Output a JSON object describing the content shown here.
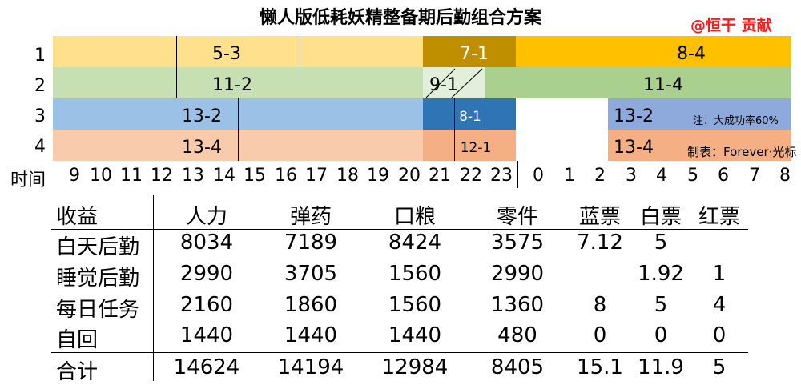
{
  "title": "懒人版低耗妖精整备期后勤组合方案",
  "credit": "@恒干 贡献",
  "row_labels": [
    "1",
    "2",
    "3",
    "4"
  ],
  "gantt": {
    "r1": {
      "a": "5-3",
      "b": "7-1",
      "c": "8-4"
    },
    "r2": {
      "a": "11-2",
      "b": "9-1",
      "c": "11-4"
    },
    "r3": {
      "a": "13-2",
      "b": "8-1",
      "c": "13-2"
    },
    "r4": {
      "a": "13-4",
      "b": "12-1",
      "c": "13-4"
    }
  },
  "notes": {
    "n1": "注：大成功率60%",
    "n2": "制表：Forever·光标"
  },
  "time_label": "时间",
  "time_ticks": [
    "9",
    "10",
    "11",
    "12",
    "13",
    "14",
    "15",
    "16",
    "17",
    "18",
    "19",
    "20",
    "21",
    "22",
    "23",
    "0",
    "1",
    "2",
    "3",
    "4",
    "5",
    "6",
    "7",
    "8"
  ],
  "colors": {
    "yellow": "#ffe08c",
    "gold": "#bf8f00",
    "yellow2": "#ffc000",
    "lightgreen": "#c6e0b4",
    "green": "#a9d08e",
    "blue": "#9bc2e6",
    "darkblue": "#2f75b5",
    "periwinkle": "#8ea9db",
    "peach": "#f8cbad",
    "salmon": "#f4b084"
  },
  "table": {
    "headers": [
      "收益",
      "人力",
      "弹药",
      "口粮",
      "零件",
      "蓝票",
      "白票",
      "红票"
    ],
    "rows": [
      {
        "name": "白天后勤",
        "v": [
          "8034",
          "7189",
          "8424",
          "3575",
          "7.12",
          "5",
          ""
        ]
      },
      {
        "name": "睡觉后勤",
        "v": [
          "2990",
          "3705",
          "1560",
          "2990",
          "",
          "1.92",
          "1"
        ]
      },
      {
        "name": "每日任务",
        "v": [
          "2160",
          "1860",
          "1560",
          "1360",
          "8",
          "5",
          "4"
        ]
      },
      {
        "name": "自回",
        "v": [
          "1440",
          "1440",
          "1440",
          "480",
          "0",
          "0",
          "0"
        ]
      }
    ],
    "total": {
      "name": "合计",
      "v": [
        "14624",
        "14194",
        "12984",
        "8405",
        "15.1",
        "11.9",
        "5"
      ]
    }
  }
}
